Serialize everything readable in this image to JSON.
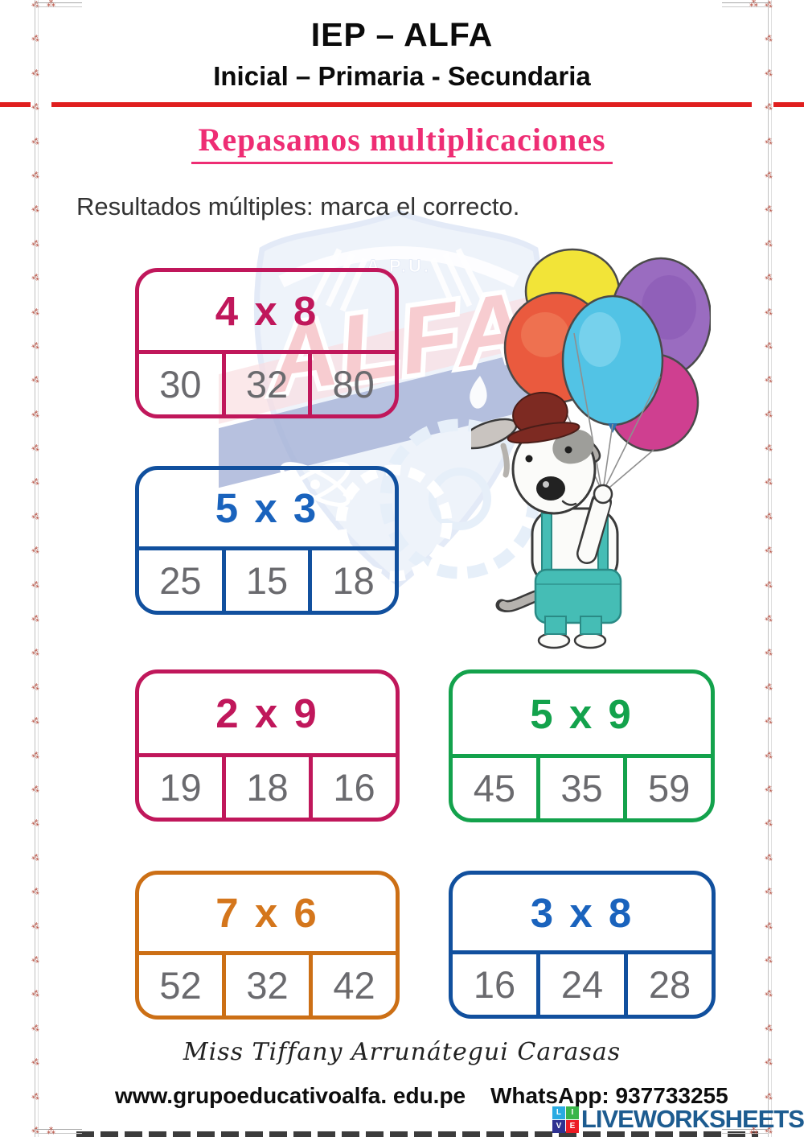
{
  "page": {
    "school_name": "IEP – ALFA",
    "school_levels": "Inicial – Primaria - Secundaria",
    "worksheet_title": "Repasamos multiplicaciones",
    "instruction": "Resultados múltiples: marca el correcto."
  },
  "cards": [
    {
      "problem": "4 x 8",
      "theme": "crimson",
      "border_color": "#c0175b",
      "options": [
        "30",
        "32",
        "80"
      ]
    },
    {
      "problem": "5 x 3",
      "theme": "blue",
      "border_color": "#11509e",
      "options": [
        "25",
        "15",
        "18"
      ]
    },
    {
      "problem": "2 x 9",
      "theme": "crimson",
      "border_color": "#c0175b",
      "options": [
        "19",
        "18",
        "16"
      ]
    },
    {
      "problem": "5 x 9",
      "theme": "green",
      "border_color": "#13a24c",
      "options": [
        "45",
        "35",
        "59"
      ]
    },
    {
      "problem": "7 x 6",
      "theme": "orange",
      "border_color": "#cc6f15",
      "options": [
        "52",
        "32",
        "42"
      ]
    },
    {
      "problem": "3 x 8",
      "theme": "blue",
      "border_color": "#11509e",
      "options": [
        "16",
        "24",
        "28"
      ]
    }
  ],
  "watermark": {
    "top_text": "A.P.U.",
    "main_text": "ALFA"
  },
  "footer": {
    "teacher_name": "Miss Tiffany Arrunátegui Carasas",
    "website": "www.grupoeducativoalfa. edu.pe",
    "whatsapp": "WhatsApp: 937733255",
    "brand_name": "LIVEWORKSHEETS",
    "brand_squares": [
      {
        "letter": "L",
        "color": "#29abe2"
      },
      {
        "letter": "I",
        "color": "#39b54a"
      },
      {
        "letter": "V",
        "color": "#2e3192"
      },
      {
        "letter": "E",
        "color": "#ed1c24"
      }
    ]
  },
  "decor": {
    "floret": "⁂",
    "accent_red": "#e01f1f",
    "title_pink": "#ee2d74",
    "answer_text_color": "#6a6a6e",
    "florets_per_side": 34
  }
}
